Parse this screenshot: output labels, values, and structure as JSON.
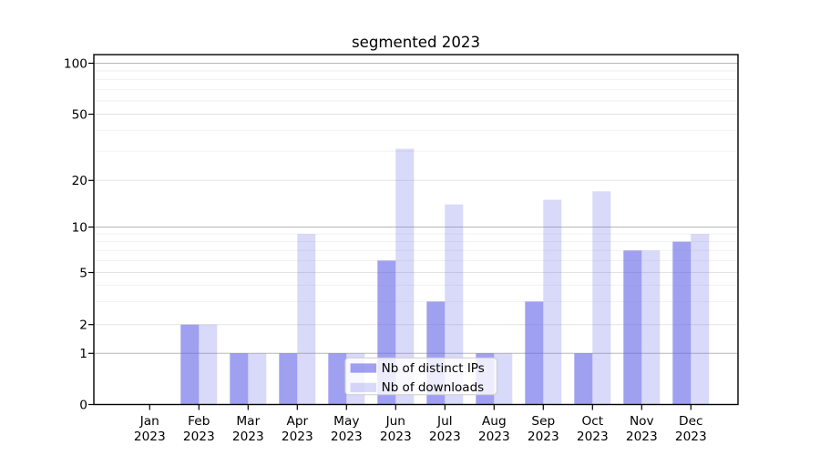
{
  "chart_data": {
    "type": "bar",
    "title": "segmented 2023",
    "categories": [
      "Jan 2023",
      "Feb 2023",
      "Mar 2023",
      "Apr 2023",
      "May 2023",
      "Jun 2023",
      "Jul 2023",
      "Aug 2023",
      "Sep 2023",
      "Oct 2023",
      "Nov 2023",
      "Dec 2023"
    ],
    "series": [
      {
        "name": "Nb of distinct IPs",
        "color": "#6666e8",
        "opacity": 0.62,
        "values": [
          0,
          2,
          1,
          1,
          1,
          6,
          3,
          1,
          3,
          1,
          7,
          8
        ]
      },
      {
        "name": "Nb of downloads",
        "color": "#6666e8",
        "opacity": 0.25,
        "values": [
          0,
          2,
          1,
          9,
          1,
          31,
          14,
          1,
          15,
          17,
          7,
          9
        ]
      }
    ],
    "yscale": {
      "type": "segmented",
      "description": "linear 0-1, log-spaced segments above with growing decade width",
      "major_ticks": [
        0,
        1,
        2,
        5,
        10,
        20,
        50,
        100
      ],
      "minor_ticks": [
        3,
        4,
        6,
        7,
        8,
        9,
        30,
        40,
        60,
        70,
        80,
        90
      ],
      "ylim": [
        0,
        100
      ]
    },
    "grid": "on",
    "legend_position": "inside lower center"
  },
  "legend": {
    "items": [
      {
        "label": "Nb of distinct IPs"
      },
      {
        "label": "Nb of downloads"
      }
    ]
  },
  "colors": {
    "background": "#ffffff",
    "bar_base": "#6666e8",
    "bar_distinct_ips_effective": "#a2a2f0",
    "bar_downloads_effective": "#d8d8f8",
    "grid_power10": "#b8b8b8",
    "grid_labeled": "#e3e3e3",
    "grid_minor": "#f1f1f1",
    "axis": "#000000",
    "text": "#000000",
    "legend_border": "#cccccc",
    "legend_bg": "rgba(255,255,255,0.8)"
  }
}
